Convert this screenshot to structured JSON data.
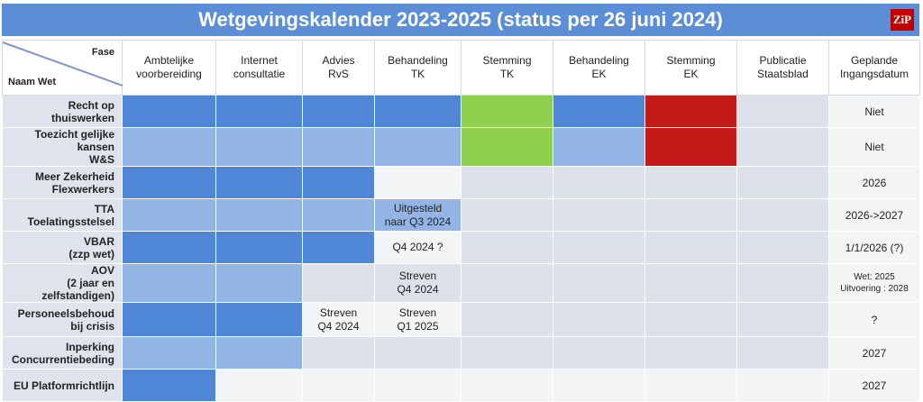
{
  "title": "Wetgevingskalender 2023-2025 (status per 26 juni 2024)",
  "logo_text": "ZiP",
  "colors": {
    "dark_blue": "#4f86d6",
    "light_blue": "#93b5e6",
    "green": "#8fd14f",
    "red": "#c41a1a",
    "empty": "#dde1e9",
    "title_bg": "#5b8ed6"
  },
  "header": {
    "fase": "Fase",
    "naam_wet": "Naam Wet",
    "columns": [
      "Ambtelijke\nvoorbereiding",
      "Internet\nconsultatie",
      "Advies\nRvS",
      "Behandeling\nTK",
      "Stemming\nTK",
      "Behandeling\nEK",
      "Stemming\nEK",
      "Publicatie\nStaatsblad",
      "Geplande\nIngangsdatum"
    ]
  },
  "rows": [
    {
      "name": "Recht op\nthuiswerken",
      "cells": [
        {
          "s": "dark",
          "t": ""
        },
        {
          "s": "dark",
          "t": ""
        },
        {
          "s": "dark",
          "t": ""
        },
        {
          "s": "dark",
          "t": ""
        },
        {
          "s": "green",
          "t": ""
        },
        {
          "s": "dark",
          "t": ""
        },
        {
          "s": "red",
          "t": ""
        },
        {
          "s": "empty",
          "t": ""
        }
      ],
      "date": "Niet"
    },
    {
      "name": "Toezicht gelijke kansen\nW&S",
      "cells": [
        {
          "s": "light",
          "t": ""
        },
        {
          "s": "light",
          "t": ""
        },
        {
          "s": "light",
          "t": ""
        },
        {
          "s": "light",
          "t": ""
        },
        {
          "s": "green",
          "t": ""
        },
        {
          "s": "light",
          "t": ""
        },
        {
          "s": "red",
          "t": ""
        },
        {
          "s": "empty",
          "t": ""
        }
      ],
      "date": "Niet"
    },
    {
      "name": "Meer Zekerheid\nFlexwerkers",
      "cells": [
        {
          "s": "dark",
          "t": ""
        },
        {
          "s": "dark",
          "t": ""
        },
        {
          "s": "dark",
          "t": ""
        },
        {
          "s": "white",
          "t": ""
        },
        {
          "s": "empty",
          "t": ""
        },
        {
          "s": "empty",
          "t": ""
        },
        {
          "s": "empty",
          "t": ""
        },
        {
          "s": "empty",
          "t": ""
        }
      ],
      "date": "2026"
    },
    {
      "name": "TTA\nToelatingsstelsel",
      "cells": [
        {
          "s": "light",
          "t": ""
        },
        {
          "s": "light",
          "t": ""
        },
        {
          "s": "light",
          "t": ""
        },
        {
          "s": "light",
          "t": "Uitgesteld\nnaar Q3 2024"
        },
        {
          "s": "empty",
          "t": ""
        },
        {
          "s": "empty",
          "t": ""
        },
        {
          "s": "empty",
          "t": ""
        },
        {
          "s": "empty",
          "t": ""
        }
      ],
      "date": "2026->2027"
    },
    {
      "name": "VBAR\n(zzp wet)",
      "cells": [
        {
          "s": "dark",
          "t": ""
        },
        {
          "s": "dark",
          "t": ""
        },
        {
          "s": "dark",
          "t": ""
        },
        {
          "s": "white",
          "t": "Q4 2024 ?"
        },
        {
          "s": "empty",
          "t": ""
        },
        {
          "s": "empty",
          "t": ""
        },
        {
          "s": "empty",
          "t": ""
        },
        {
          "s": "empty",
          "t": ""
        }
      ],
      "date": "1/1/2026 (?)"
    },
    {
      "name": "AOV\n(2 jaar en zelfstandigen)",
      "cells": [
        {
          "s": "light",
          "t": ""
        },
        {
          "s": "light",
          "t": ""
        },
        {
          "s": "empty",
          "t": ""
        },
        {
          "s": "empty",
          "t": "Streven\nQ4 2024"
        },
        {
          "s": "empty",
          "t": ""
        },
        {
          "s": "empty",
          "t": ""
        },
        {
          "s": "empty",
          "t": ""
        },
        {
          "s": "empty",
          "t": ""
        }
      ],
      "date": "Wet: 2025\nUitvoering : 2028",
      "date_small": true
    },
    {
      "name": "Personeelsbehoud\nbij crisis",
      "cells": [
        {
          "s": "dark",
          "t": ""
        },
        {
          "s": "dark",
          "t": ""
        },
        {
          "s": "white",
          "t": "Streven\nQ4 2024"
        },
        {
          "s": "white",
          "t": "Streven\nQ1 2025"
        },
        {
          "s": "empty",
          "t": ""
        },
        {
          "s": "empty",
          "t": ""
        },
        {
          "s": "empty",
          "t": ""
        },
        {
          "s": "empty",
          "t": ""
        }
      ],
      "date": "?"
    },
    {
      "name": "Inperking\nConcurrentiebeding",
      "cells": [
        {
          "s": "light",
          "t": ""
        },
        {
          "s": "light",
          "t": ""
        },
        {
          "s": "empty",
          "t": ""
        },
        {
          "s": "empty",
          "t": ""
        },
        {
          "s": "empty",
          "t": ""
        },
        {
          "s": "empty",
          "t": ""
        },
        {
          "s": "empty",
          "t": ""
        },
        {
          "s": "empty",
          "t": ""
        }
      ],
      "date": "2027"
    },
    {
      "name": "EU Platformrichtlijn",
      "cells": [
        {
          "s": "dark",
          "t": ""
        },
        {
          "s": "white",
          "t": ""
        },
        {
          "s": "white",
          "t": ""
        },
        {
          "s": "white",
          "t": ""
        },
        {
          "s": "white",
          "t": ""
        },
        {
          "s": "white",
          "t": ""
        },
        {
          "s": "white",
          "t": ""
        },
        {
          "s": "white",
          "t": ""
        }
      ],
      "date": "2027"
    }
  ]
}
